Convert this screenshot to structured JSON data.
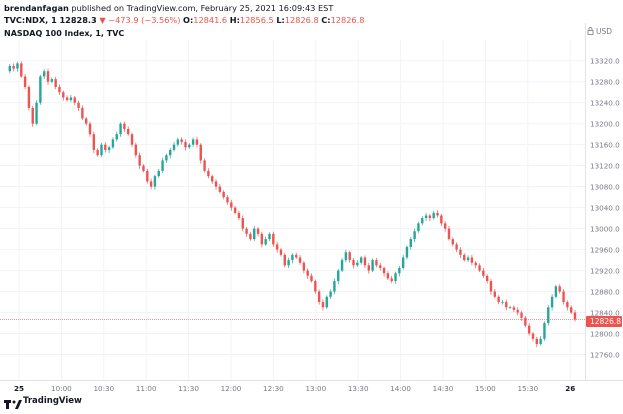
{
  "header": {
    "author": "brendanfagan",
    "published_text": "published on TradingView.com, February 25, 2021 16:09:43 EST",
    "symbol": "TVC:NDX, 1",
    "last": "12828.3",
    "change": "▼ −473.9 (−3.56%)",
    "o_label": "O:",
    "o_value": "12841.6",
    "h_label": "H:",
    "h_value": "12856.5",
    "l_label": "L:",
    "l_value": "12826.8",
    "c_label": "C:",
    "c_value": "12826.8"
  },
  "chart_title": "NASDAQ 100 Index, 1, TVC",
  "currency": "USD",
  "current_price_tag": "12826.8",
  "footer": {
    "brand": "TradingView"
  },
  "colors": {
    "up": "#26a69a",
    "down": "#ef5350",
    "grid": "#f0f3fa",
    "axis_text": "#787b86"
  },
  "chart_data": {
    "type": "candlestick",
    "title": "NASDAQ 100 Index, 1, TVC",
    "y_ticks": [
      "13320.0",
      "13280.0",
      "13240.0",
      "13200.0",
      "13160.0",
      "13120.0",
      "13080.0",
      "13040.0",
      "13000.0",
      "12960.0",
      "12920.0",
      "12880.0",
      "12840.0",
      "12800.0",
      "12760.0"
    ],
    "ylim": [
      12740,
      13350
    ],
    "x_ticks": [
      "25",
      "10:00",
      "10:30",
      "11:00",
      "11:30",
      "12:00",
      "12:30",
      "13:00",
      "13:30",
      "14:00",
      "14:30",
      "15:00",
      "15:30",
      "26"
    ],
    "current_price": 12826.8,
    "series": [
      {
        "name": "path",
        "values": [
          13300,
          13310,
          13305,
          13315,
          13290,
          13270,
          13230,
          13200,
          13240,
          13290,
          13300,
          13280,
          13285,
          13270,
          13260,
          13250,
          13245,
          13250,
          13240,
          13230,
          13210,
          13200,
          13180,
          13150,
          13140,
          13160,
          13150,
          13155,
          13170,
          13180,
          13200,
          13190,
          13180,
          13160,
          13140,
          13120,
          13110,
          13090,
          13080,
          13100,
          13110,
          13130,
          13140,
          13150,
          13160,
          13170,
          13165,
          13155,
          13160,
          13170,
          13160,
          13130,
          13110,
          13100,
          13090,
          13080,
          13070,
          13060,
          13050,
          13040,
          13030,
          13020,
          13000,
          12990,
          12980,
          13000,
          12990,
          12970,
          12980,
          12990,
          12970,
          12960,
          12950,
          12930,
          12940,
          12950,
          12945,
          12935,
          12920,
          12910,
          12900,
          12880,
          12860,
          12850,
          12870,
          12880,
          12900,
          12920,
          12940,
          12955,
          12940,
          12930,
          12935,
          12945,
          12930,
          12920,
          12940,
          12930,
          12925,
          12915,
          12905,
          12900,
          12915,
          12925,
          12945,
          12965,
          12980,
          12995,
          13010,
          13020,
          13025,
          13020,
          13030,
          13025,
          13010,
          13000,
          12980,
          12970,
          12960,
          12950,
          12940,
          12945,
          12935,
          12930,
          12920,
          12910,
          12900,
          12880,
          12870,
          12860,
          12860,
          12850,
          12850,
          12845,
          12840,
          12830,
          12815,
          12800,
          12790,
          12780,
          12790,
          12820,
          12850,
          12870,
          12890,
          12880,
          12860,
          12850,
          12840,
          12826.8
        ]
      }
    ]
  }
}
